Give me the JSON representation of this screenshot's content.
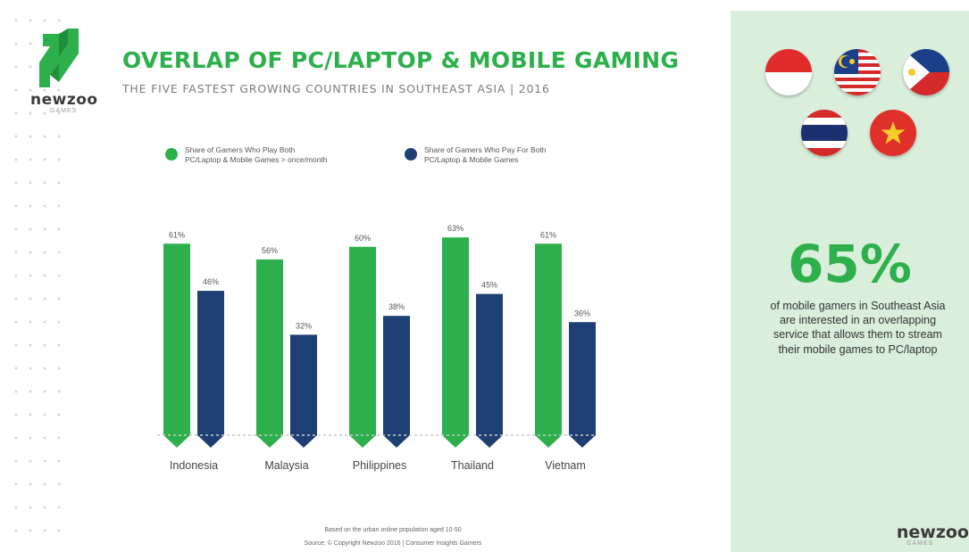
{
  "brand": {
    "name": "newzoo",
    "tagline": "GAMES"
  },
  "header": {
    "title": "OVERLAP OF PC/LAPTOP & MOBILE GAMING",
    "subtitle": "THE FIVE FASTEST GROWING COUNTRIES IN SOUTHEAST ASIA | 2016"
  },
  "colors": {
    "green": "#2db04b",
    "navy": "#1d3f73",
    "panel": "#d9eedb"
  },
  "chart_data": {
    "type": "bar",
    "categories": [
      "Indonesia",
      "Malaysia",
      "Philippines",
      "Thailand",
      "Vietnam"
    ],
    "series": [
      {
        "name": "Share of Gamers Who Play Both PC/Laptop & Mobile Games > once/month",
        "values": [
          61,
          56,
          60,
          63,
          61
        ],
        "labels": [
          "61%",
          "56%",
          "60%",
          "63%",
          "61%"
        ],
        "color": "#2db04b"
      },
      {
        "name": "Share of Gamers Who Pay For Both PC/Laptop & Mobile Games",
        "values": [
          46,
          32,
          38,
          45,
          36
        ],
        "labels": [
          "46%",
          "32%",
          "38%",
          "45%",
          "36%"
        ],
        "color": "#1d3f73"
      }
    ],
    "ylim": [
      0,
      70
    ],
    "grid": false,
    "legend": "top"
  },
  "legend": {
    "item1": [
      "Share of Gamers Who Play Both",
      "PC/Laptop & Mobile Games > once/month"
    ],
    "item2": [
      "Share of Gamers Who Pay For Both",
      "PC/Laptop & Mobile Games"
    ]
  },
  "footnotes": {
    "line1": "Based on the urban online population aged 10-50",
    "line2": "Source: © Copyright Newzoo 2016 | Consumer Insights Gamers"
  },
  "panel": {
    "flags": [
      "indonesia-flag-icon",
      "malaysia-flag-icon",
      "philippines-flag-icon",
      "thailand-flag-icon",
      "vietnam-flag-icon"
    ],
    "stat": "65%",
    "description": "of mobile gamers in Southeast Asia are interested in an overlapping service that allows them to stream their mobile games to PC/laptop"
  }
}
